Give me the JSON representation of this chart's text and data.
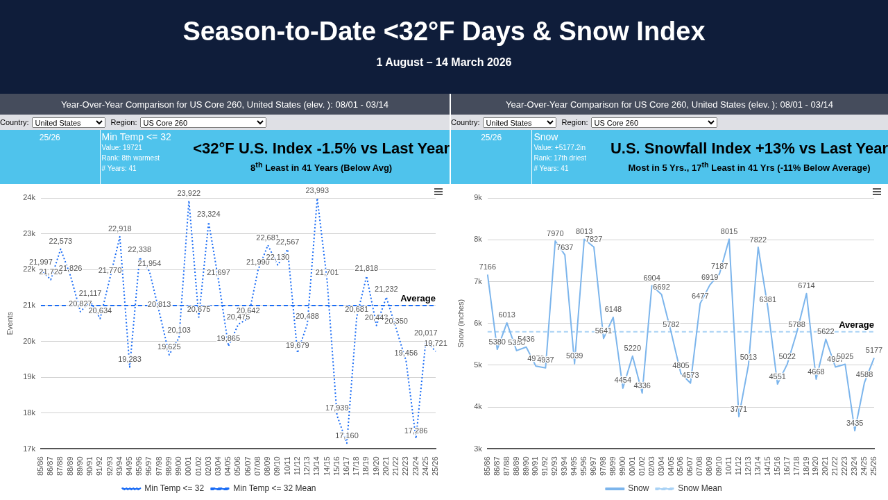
{
  "chart_data": [
    {
      "type": "other",
      "title": "Season-to-Date <32°F Days & Snow Index",
      "subtitle": "1 August – 14 March 2026"
    },
    {
      "type": "line",
      "title": "Year-Over-Year Comparison for US Core 260, United States (elev. ): 08/01 - 03/14",
      "subtitle": "<32°F U.S. Index -1.5% vs Last Year",
      "annotations": [
        "8$^{th}$ Least in 41 Years (Below Avg)",
        "25/26",
        "Min Temp <= 32",
        "Value: 19721",
        "Rank: 8th warmest",
        "# Years: 41",
        "Country:",
        "United States",
        "Region:",
        "US Core 260",
        {
          "text": "Average",
          "y": 21000
        }
      ],
      "categories": [
        "85/86",
        "86/87",
        "87/88",
        "88/89",
        "89/90",
        "90/91",
        "91/92",
        "92/93",
        "93/94",
        "94/95",
        "95/96",
        "96/97",
        "97/98",
        "98/99",
        "99/00",
        "00/01",
        "01/02",
        "02/03",
        "03/04",
        "04/05",
        "05/06",
        "06/07",
        "07/08",
        "08/09",
        "09/10",
        "10/11",
        "11/12",
        "12/13",
        "13/14",
        "14/15",
        "15/16",
        "16/17",
        "17/18",
        "18/19",
        "19/20",
        "20/21",
        "21/22",
        "22/23",
        "23/24",
        "24/25",
        "25/26"
      ],
      "series": [
        {
          "name": "Min Temp <= 32",
          "color": "#1a6cf5",
          "line_style": "dotted",
          "values": [
            21997,
            21720,
            22573,
            21826,
            20827,
            21117,
            20634,
            21770,
            22918,
            19283,
            22338,
            21954,
            20813,
            19625,
            20103,
            23922,
            20675,
            23324,
            21697,
            19865,
            20475,
            20642,
            21990,
            22681,
            22130,
            22567,
            19679,
            20488,
            23993,
            21701,
            17939,
            17160,
            20681,
            21818,
            20443,
            21232,
            20350,
            19456,
            17286,
            20017,
            19721
          ],
          "value_labels": [
            "21,997",
            "21,720",
            "22,573",
            "21,826",
            "20,827",
            "21,117",
            "20,634",
            "21,770",
            "22,918",
            "19,283",
            "22,338",
            "21,954",
            "20,813",
            "19,625",
            "20,103",
            "23,922",
            "20,675",
            "23,324",
            "21,697",
            "19,865",
            "20,475",
            "20,642",
            "21,990",
            "22,681",
            "22,130",
            "22,567",
            "19,679",
            "20,488",
            "23,993",
            "21,701",
            "17,939",
            "17,160",
            "20,681",
            "21,818",
            "20,443",
            "21,232",
            "20,350",
            "19,456",
            "17,286",
            "20,017",
            "19,721"
          ]
        },
        {
          "name": "Min Temp <= 32 Mean",
          "color": "#1a6cf5",
          "line_style": "dashed",
          "values": [
            21000,
            21000,
            21000,
            21000,
            21000,
            21000,
            21000,
            21000,
            21000,
            21000,
            21000,
            21000,
            21000,
            21000,
            21000,
            21000,
            21000,
            21000,
            21000,
            21000,
            21000,
            21000,
            21000,
            21000,
            21000,
            21000,
            21000,
            21000,
            21000,
            21000,
            21000,
            21000,
            21000,
            21000,
            21000,
            21000,
            21000,
            21000,
            21000,
            21000,
            21000
          ]
        }
      ],
      "ylabel": "Events",
      "ylim": [
        17000,
        24000
      ],
      "yticks": [
        {
          "value": 17000,
          "label": "17k"
        },
        {
          "value": 18000,
          "label": "18k"
        },
        {
          "value": 19000,
          "label": "19k"
        },
        {
          "value": 20000,
          "label": "20k"
        },
        {
          "value": 21000,
          "label": "21k"
        },
        {
          "value": 22000,
          "label": "22k"
        },
        {
          "value": 23000,
          "label": "23k"
        },
        {
          "value": 24000,
          "label": "24k"
        }
      ],
      "grid": "y",
      "legend": "bottom",
      "marker": "none"
    },
    {
      "type": "line",
      "title": "Year-Over-Year Comparison for US Core 260, United States (elev. ): 08/01 - 03/14",
      "subtitle": "U.S. Snowfall Index +13% vs Last Year",
      "annotations": [
        "Most in 5 Yrs., 17$^{th}$  Least in 41 Yrs (-11% Below Average)",
        "25/26",
        "Snow",
        "Value: +5177.2in",
        "Rank: 17th driest",
        "# Years: 41",
        "Country:",
        "United States",
        "Region:",
        "US Core 260",
        {
          "text": "Average",
          "y": 5800
        }
      ],
      "categories": [
        "85/86",
        "86/87",
        "87/88",
        "88/89",
        "89/90",
        "90/91",
        "91/92",
        "92/93",
        "93/94",
        "94/95",
        "95/96",
        "96/97",
        "97/98",
        "98/99",
        "99/00",
        "00/01",
        "01/02",
        "02/03",
        "03/04",
        "04/05",
        "05/06",
        "06/07",
        "07/08",
        "08/09",
        "09/10",
        "10/11",
        "11/12",
        "12/13",
        "13/14",
        "14/15",
        "15/16",
        "16/17",
        "17/18",
        "18/19",
        "19/20",
        "20/21",
        "21/22",
        "22/23",
        "23/24",
        "24/25",
        "25/26"
      ],
      "series": [
        {
          "name": "Snow",
          "color": "#7cb5ec",
          "line_style": "solid",
          "values": [
            7166,
            5380,
            6013,
            5350,
            5436,
            4978,
            4937,
            7970,
            7637,
            5039,
            8013,
            7827,
            5641,
            6148,
            4454,
            5220,
            4336,
            6904,
            6692,
            5782,
            4805,
            4573,
            6477,
            6919,
            7187,
            8015,
            3771,
            5013,
            7822,
            6381,
            4551,
            5022,
            5788,
            6714,
            4668,
            5622,
            4957,
            5025,
            3435,
            4588,
            5177
          ],
          "value_labels": [
            "7166",
            "5380",
            "6013",
            "5350",
            "5436",
            "4978",
            "4937",
            "7970",
            "7637",
            "5039",
            "8013",
            "7827",
            "5641",
            "6148",
            "4454",
            "5220",
            "4336",
            "6904",
            "6692",
            "5782",
            "4805",
            "4573",
            "6477",
            "6919",
            "7187",
            "8015",
            "3771",
            "5013",
            "7822",
            "6381",
            "4551",
            "5022",
            "5788",
            "6714",
            "4668",
            "5622",
            "4957",
            "5025",
            "3435",
            "4588",
            "5177"
          ]
        },
        {
          "name": "Snow Mean",
          "color": "#a9d2f5",
          "line_style": "dashed",
          "values": [
            5800,
            5800,
            5800,
            5800,
            5800,
            5800,
            5800,
            5800,
            5800,
            5800,
            5800,
            5800,
            5800,
            5800,
            5800,
            5800,
            5800,
            5800,
            5800,
            5800,
            5800,
            5800,
            5800,
            5800,
            5800,
            5800,
            5800,
            5800,
            5800,
            5800,
            5800,
            5800,
            5800,
            5800,
            5800,
            5800,
            5800,
            5800,
            5800,
            5800,
            5800
          ]
        }
      ],
      "ylabel": "Snow (inches)",
      "ylim": [
        3000,
        9000
      ],
      "yticks": [
        {
          "value": 3000,
          "label": "3k"
        },
        {
          "value": 4000,
          "label": "4k"
        },
        {
          "value": 5000,
          "label": "5k"
        },
        {
          "value": 6000,
          "label": "6k"
        },
        {
          "value": 7000,
          "label": "7k"
        },
        {
          "value": 8000,
          "label": "8k"
        },
        {
          "value": 9000,
          "label": "9k"
        }
      ],
      "grid": "y",
      "legend": "bottom",
      "marker": "none"
    }
  ]
}
